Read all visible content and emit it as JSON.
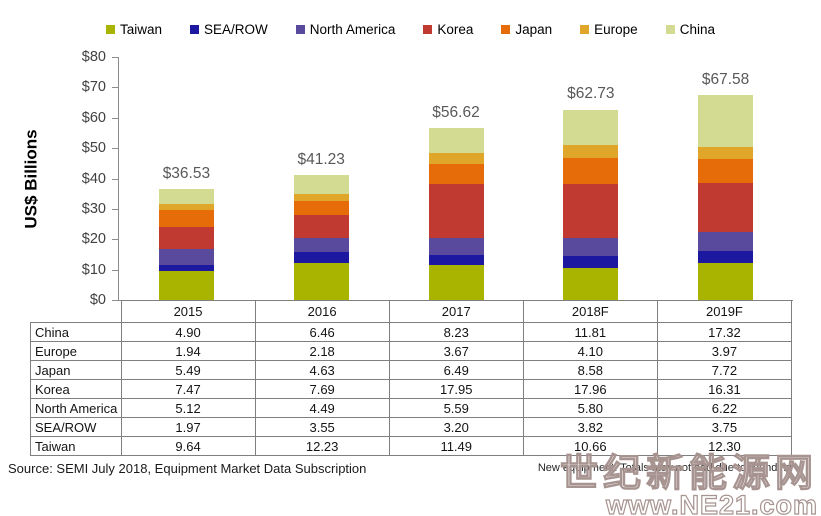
{
  "chart_data": {
    "type": "bar",
    "subtype": "stacked",
    "title": "",
    "ylabel": "US$ Billions",
    "xlabel": "",
    "categories": [
      "2015",
      "2016",
      "2017",
      "2018F",
      "2019F"
    ],
    "series": [
      {
        "name": "Taiwan",
        "color": "#a9b400",
        "values": [
          9.64,
          12.23,
          11.49,
          10.66,
          12.3
        ]
      },
      {
        "name": "SEA/ROW",
        "color": "#1d18a0",
        "values": [
          1.97,
          3.55,
          3.2,
          3.82,
          3.75
        ]
      },
      {
        "name": "North America",
        "color": "#5a4a9e",
        "values": [
          5.12,
          4.49,
          5.59,
          5.8,
          6.22
        ]
      },
      {
        "name": "Korea",
        "color": "#c03a32",
        "values": [
          7.47,
          7.69,
          17.95,
          17.96,
          16.31
        ]
      },
      {
        "name": "Japan",
        "color": "#e66c09",
        "values": [
          5.49,
          4.63,
          6.49,
          8.58,
          7.72
        ]
      },
      {
        "name": "Europe",
        "color": "#e0a62a",
        "values": [
          1.94,
          2.18,
          3.67,
          4.1,
          3.97
        ]
      },
      {
        "name": "China",
        "color": "#d3db92",
        "values": [
          4.9,
          6.46,
          8.23,
          11.81,
          17.32
        ]
      }
    ],
    "totals": [
      "$36.53",
      "$41.23",
      "$56.62",
      "$62.73",
      "$67.58"
    ],
    "ylim": [
      0,
      80
    ],
    "ytick_step": 10,
    "yticks": [
      "$0",
      "$10",
      "$20",
      "$30",
      "$40",
      "$50",
      "$60",
      "$70",
      "$80"
    ],
    "grid": false,
    "legend_position": "top"
  },
  "table": {
    "corner_label": "",
    "columns": [
      "2015",
      "2016",
      "2017",
      "2018F",
      "2019F"
    ],
    "rows": [
      {
        "label": "China",
        "values": [
          "4.90",
          "6.46",
          "8.23",
          "11.81",
          "17.32"
        ]
      },
      {
        "label": "Europe",
        "values": [
          "1.94",
          "2.18",
          "3.67",
          "4.10",
          "3.97"
        ]
      },
      {
        "label": "Japan",
        "values": [
          "5.49",
          "4.63",
          "6.49",
          "8.58",
          "7.72"
        ]
      },
      {
        "label": "Korea",
        "values": [
          "7.47",
          "7.69",
          "17.95",
          "17.96",
          "16.31"
        ]
      },
      {
        "label": "North America",
        "values": [
          "5.12",
          "4.49",
          "5.59",
          "5.80",
          "6.22"
        ]
      },
      {
        "label": "SEA/ROW",
        "values": [
          "1.97",
          "3.55",
          "3.20",
          "3.82",
          "3.75"
        ]
      },
      {
        "label": "Taiwan",
        "values": [
          "9.64",
          "12.23",
          "11.49",
          "10.66",
          "12.30"
        ]
      }
    ]
  },
  "footer": {
    "source": "Source: SEMI July 2018, Equipment Market Data Subscription",
    "note": "New equipment. Totals may not add due to rounding"
  },
  "watermark": {
    "line1": "世纪新能源网",
    "line2": "www.NE21.com",
    "outline_color": "#a79491"
  }
}
